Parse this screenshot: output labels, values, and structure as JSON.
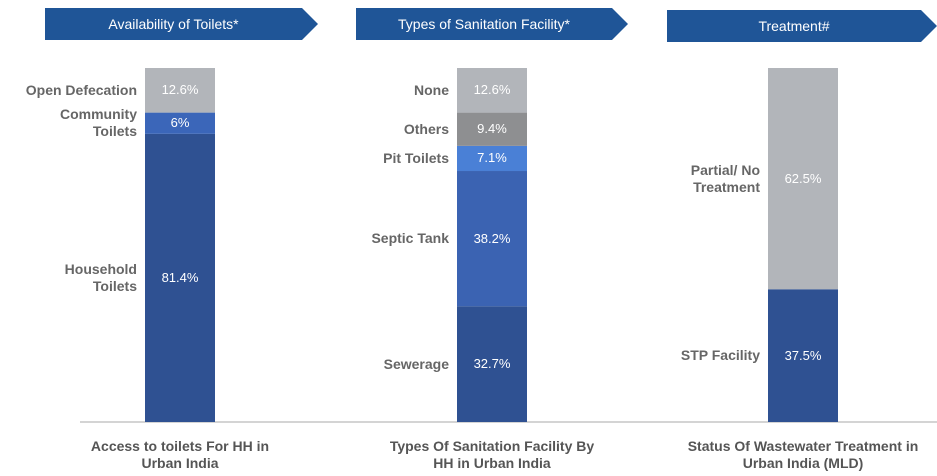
{
  "chart_data": [
    {
      "type": "stacked_bar",
      "title": "Availability of Toilets*",
      "categories": [
        "Access to toilets For HH in Urban India"
      ],
      "series": [
        {
          "name": "Household Toilets",
          "color": "#2f5192",
          "values": [
            81.4
          ],
          "value_labels": [
            "81.4%"
          ]
        },
        {
          "name": "Community Toilets",
          "color": "#3b66b9",
          "values": [
            6
          ],
          "value_labels": [
            "6%"
          ]
        },
        {
          "name": "Open Defecation",
          "color": "#b2b5ba",
          "values": [
            12.6
          ],
          "value_labels": [
            "12.6%"
          ]
        }
      ]
    },
    {
      "type": "stacked_bar",
      "title": "Types of Sanitation Facility*",
      "categories": [
        "Types Of Sanitation Facility By HH in Urban India"
      ],
      "series": [
        {
          "name": "Sewerage",
          "color": "#2f5192",
          "values": [
            32.7
          ],
          "value_labels": [
            "32.7%"
          ]
        },
        {
          "name": "Septic Tank",
          "color": "#3b63b2",
          "values": [
            38.2
          ],
          "value_labels": [
            "38.2%"
          ]
        },
        {
          "name": "Pit Toilets",
          "color": "#4a80d6",
          "values": [
            7.1
          ],
          "value_labels": [
            "7.1%"
          ]
        },
        {
          "name": "Others",
          "color": "#8e8f91",
          "values": [
            9.4
          ],
          "value_labels": [
            "9.4%"
          ]
        },
        {
          "name": "None",
          "color": "#b2b5ba",
          "values": [
            12.6
          ],
          "value_labels": [
            "12.6%"
          ]
        }
      ]
    },
    {
      "type": "stacked_bar",
      "title": "Treatment#",
      "categories": [
        "Status Of Wastewater Treatment in Urban India (MLD)"
      ],
      "series": [
        {
          "name": "STP Facility",
          "color": "#2f5192",
          "values": [
            37.5
          ],
          "value_labels": [
            "37.5%"
          ]
        },
        {
          "name": "Partial/ No Treatment",
          "color": "#b2b5ba",
          "values": [
            62.5
          ],
          "value_labels": [
            "62.5%"
          ]
        }
      ]
    }
  ]
}
